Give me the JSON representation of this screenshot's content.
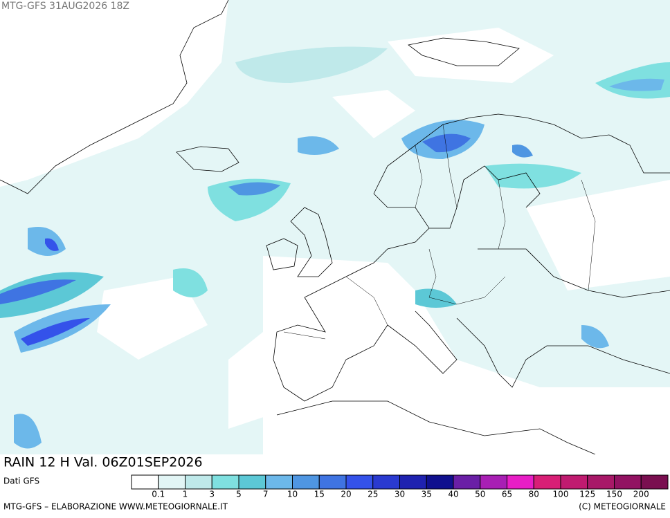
{
  "header": {
    "title": "MTG-GFS 31AUG2026 18Z"
  },
  "map": {
    "caption": "RAIN 12 H Val. 06Z01SEP2026"
  },
  "legend": {
    "source": "Dati GFS",
    "colors": [
      "#ffffff",
      "#e2f5f5",
      "#bfe9ea",
      "#7fe0e0",
      "#5cc8d6",
      "#6cb8ea",
      "#4f96e2",
      "#3f74e2",
      "#3452ea",
      "#2a3ad0",
      "#1f22b0",
      "#10108e",
      "#6a1fa6",
      "#a81fb4",
      "#e81ec6",
      "#d81f76",
      "#c01b70",
      "#a81868",
      "#921262",
      "#7a0f50"
    ],
    "labels": [
      0.1,
      1,
      3,
      5,
      7,
      10,
      15,
      20,
      25,
      30,
      35,
      40,
      50,
      65,
      80,
      100,
      125,
      150,
      200
    ]
  },
  "footer": {
    "left": "MTG-GFS – ELABORAZIONE WWW.METEOGIORNALE.IT",
    "right": "(C) METEOGIORNALE"
  }
}
